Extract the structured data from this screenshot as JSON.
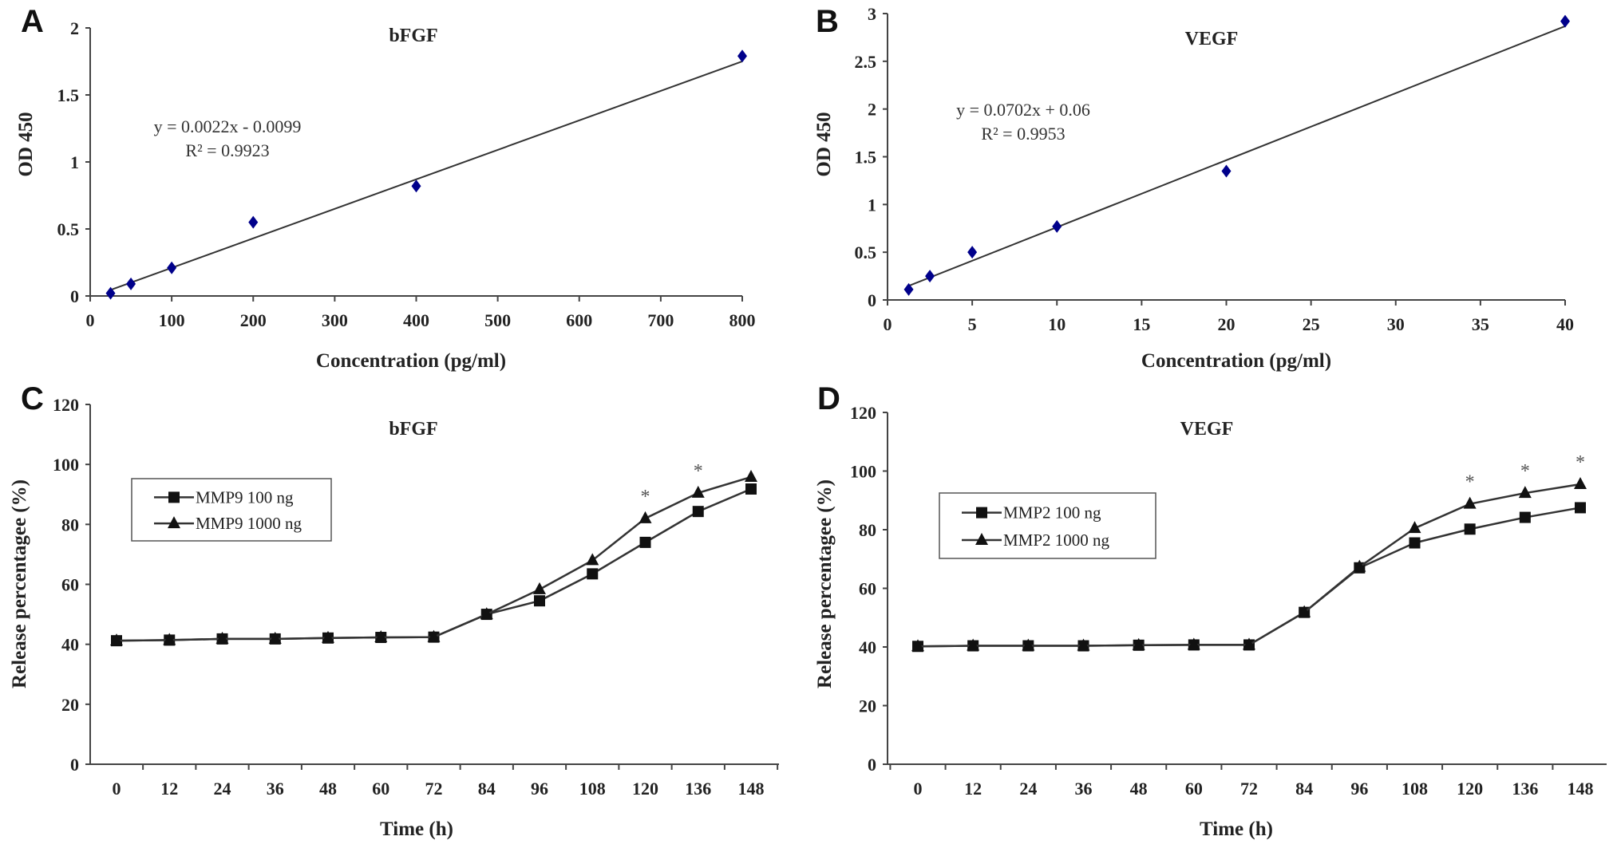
{
  "chart_data": [
    {
      "panel": "A",
      "type": "scatter",
      "title": "bFGF",
      "xlabel": "Concentration (pg/ml)",
      "ylabel": "OD 450",
      "xlim": [
        0,
        800
      ],
      "ylim": [
        0,
        2
      ],
      "xticks": [
        "0",
        "100",
        "200",
        "300",
        "400",
        "500",
        "600",
        "700",
        "800"
      ],
      "yticks": [
        "0",
        "0.5",
        "1",
        "1.5",
        "2"
      ],
      "x": [
        25,
        50,
        100,
        200,
        400,
        800
      ],
      "y": [
        0.02,
        0.09,
        0.21,
        0.55,
        0.82,
        1.79
      ],
      "trendline": {
        "slope": 0.0022,
        "intercept": -0.0099,
        "equation": "y = 0.0022x - 0.0099",
        "r2": "R² = 0.9923"
      },
      "marker_color": "#00008B"
    },
    {
      "panel": "B",
      "type": "scatter",
      "title": "VEGF",
      "xlabel": "Concentration (pg/ml)",
      "ylabel": "OD 450",
      "xlim": [
        0,
        40
      ],
      "ylim": [
        0,
        3
      ],
      "xticks": [
        "0",
        "5",
        "10",
        "15",
        "20",
        "25",
        "30",
        "35",
        "40"
      ],
      "yticks": [
        "0",
        "0.5",
        "1",
        "1.5",
        "2",
        "2.5",
        "3"
      ],
      "x": [
        1.25,
        2.5,
        5,
        10,
        20,
        40
      ],
      "y": [
        0.11,
        0.25,
        0.5,
        0.77,
        1.35,
        2.92
      ],
      "trendline": {
        "slope": 0.0702,
        "intercept": 0.06,
        "equation": "y = 0.0702x + 0.06",
        "r2": "R² = 0.9953"
      },
      "marker_color": "#00008B"
    },
    {
      "panel": "C",
      "type": "line",
      "title": "bFGF",
      "xlabel": "Time (h)",
      "ylabel": "Release percentagee (%)",
      "ylim": [
        0,
        120
      ],
      "categories": [
        "0",
        "12",
        "24",
        "36",
        "48",
        "60",
        "72",
        "84",
        "96",
        "108",
        "120",
        "136",
        "148"
      ],
      "yticks": [
        "0",
        "20",
        "40",
        "60",
        "80",
        "100",
        "120"
      ],
      "series": [
        {
          "name": "MMP9 100 ng",
          "marker": "square",
          "values": [
            41.2,
            41.4,
            41.8,
            41.8,
            42.1,
            42.3,
            42.4,
            50,
            54.5,
            63.5,
            74,
            84.3,
            91.8
          ]
        },
        {
          "name": "MMP9 1000 ng",
          "marker": "triangle",
          "values": [
            41.2,
            41.4,
            41.8,
            41.8,
            42.1,
            42.3,
            42.4,
            50,
            58.3,
            68,
            82,
            90.5,
            95.8
          ]
        }
      ],
      "significance": {
        "symbol": "*",
        "categories": [
          "120",
          "136"
        ]
      },
      "legend": "upper-left"
    },
    {
      "panel": "D",
      "type": "line",
      "title": "VEGF",
      "xlabel": "Time (h)",
      "ylabel": "Release percentagee (%)",
      "ylim": [
        0,
        120
      ],
      "categories": [
        "0",
        "12",
        "24",
        "36",
        "48",
        "60",
        "72",
        "84",
        "96",
        "108",
        "120",
        "136",
        "148"
      ],
      "yticks": [
        "0",
        "20",
        "40",
        "60",
        "80",
        "100",
        "120"
      ],
      "series": [
        {
          "name": "MMP2 100 ng",
          "marker": "square",
          "values": [
            40.2,
            40.4,
            40.4,
            40.4,
            40.6,
            40.7,
            40.7,
            51.8,
            67,
            75.5,
            80.2,
            84.2,
            87.5
          ]
        },
        {
          "name": "MMP2 1000 ng",
          "marker": "triangle",
          "values": [
            40.2,
            40.4,
            40.4,
            40.4,
            40.6,
            40.7,
            40.7,
            51.8,
            67.3,
            80.5,
            88.8,
            92.5,
            95.5
          ]
        }
      ],
      "significance": {
        "symbol": "*",
        "categories": [
          "120",
          "136",
          "148"
        ]
      },
      "legend": "upper-left"
    }
  ]
}
